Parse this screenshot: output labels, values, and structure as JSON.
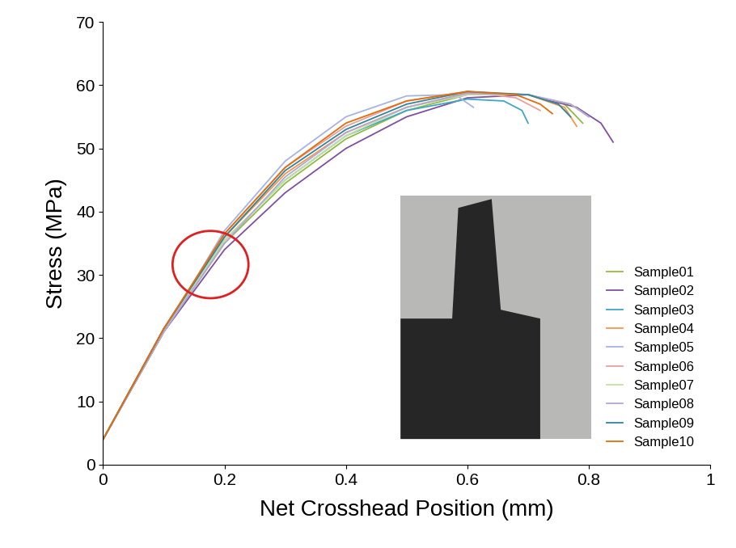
{
  "chart_data": {
    "type": "line",
    "x_label": "Net Crosshead Position (mm)",
    "y_label": "Stress (MPa)",
    "xlim": [
      0,
      1
    ],
    "xticks": [
      0,
      0.2,
      0.4,
      0.6,
      0.8,
      1
    ],
    "ylim": [
      0,
      70
    ],
    "yticks": [
      0,
      10,
      20,
      30,
      40,
      50,
      60,
      70
    ],
    "grid": false,
    "legend": "lower right",
    "series": [
      {
        "name": "Sample01",
        "color": "#8fbc3f",
        "line_style": "solid",
        "x": [
          0,
          0.1,
          0.2,
          0.3,
          0.4,
          0.5,
          0.6,
          0.7,
          0.76,
          0.79
        ],
        "values": [
          4,
          21,
          35,
          44.5,
          51.5,
          56,
          58.5,
          58.5,
          57,
          54
        ]
      },
      {
        "name": "Sample02",
        "color": "#7f4fa0",
        "line_style": "solid",
        "x": [
          0,
          0.1,
          0.2,
          0.3,
          0.4,
          0.5,
          0.6,
          0.7,
          0.78,
          0.82,
          0.84
        ],
        "values": [
          4,
          21,
          34,
          43,
          50,
          55,
          58,
          58.5,
          56.5,
          54,
          51
        ]
      },
      {
        "name": "Sample03",
        "color": "#3fa7c6",
        "line_style": "solid",
        "x": [
          0,
          0.1,
          0.2,
          0.3,
          0.4,
          0.5,
          0.6,
          0.66,
          0.69,
          0.7
        ],
        "values": [
          4,
          21,
          35.5,
          45,
          52,
          56,
          57.8,
          57.5,
          56,
          54
        ]
      },
      {
        "name": "Sample04",
        "color": "#f79646",
        "line_style": "solid",
        "x": [
          0,
          0.1,
          0.2,
          0.3,
          0.4,
          0.5,
          0.6,
          0.7,
          0.76,
          0.78
        ],
        "values": [
          4,
          21.5,
          36,
          46,
          52.5,
          56.5,
          58.8,
          58.5,
          56.5,
          53.5
        ]
      },
      {
        "name": "Sample05",
        "color": "#a5b4e0",
        "line_style": "solid",
        "x": [
          0,
          0.1,
          0.2,
          0.3,
          0.4,
          0.5,
          0.58,
          0.61
        ],
        "values": [
          4,
          21,
          37,
          48,
          55,
          58.3,
          58.5,
          56.5
        ]
      },
      {
        "name": "Sample06",
        "color": "#e8a0a0",
        "line_style": "solid",
        "x": [
          0,
          0.1,
          0.2,
          0.3,
          0.4,
          0.5,
          0.6,
          0.68,
          0.72
        ],
        "values": [
          4,
          21.5,
          36.5,
          47,
          53.5,
          57.5,
          59,
          58,
          56
        ]
      },
      {
        "name": "Sample07",
        "color": "#c5e0a0",
        "line_style": "solid",
        "x": [
          0,
          0.1,
          0.2,
          0.3,
          0.4,
          0.5,
          0.6,
          0.7,
          0.77,
          0.8
        ],
        "values": [
          4,
          21,
          35.5,
          45,
          52,
          56.5,
          58.5,
          58.5,
          57,
          55
        ]
      },
      {
        "name": "Sample08",
        "color": "#b4a7d6",
        "line_style": "solid",
        "x": [
          0,
          0.1,
          0.2,
          0.3,
          0.4,
          0.5,
          0.6,
          0.7,
          0.77,
          0.8
        ],
        "values": [
          4,
          21,
          35,
          45.5,
          52.5,
          56.5,
          58.7,
          58.5,
          57,
          55
        ]
      },
      {
        "name": "Sample09",
        "color": "#31859c",
        "line_style": "solid",
        "x": [
          0,
          0.1,
          0.2,
          0.3,
          0.4,
          0.5,
          0.6,
          0.7,
          0.75,
          0.77
        ],
        "values": [
          4,
          21.5,
          36,
          46.5,
          53,
          57,
          59,
          58.5,
          57,
          55
        ]
      },
      {
        "name": "Sample10",
        "color": "#e46c0a",
        "line_style": "solid",
        "x": [
          0,
          0.1,
          0.2,
          0.3,
          0.4,
          0.5,
          0.6,
          0.68,
          0.72,
          0.74
        ],
        "values": [
          4,
          21.5,
          36.5,
          47,
          54,
          57.5,
          59,
          58.5,
          57,
          55.5
        ]
      }
    ]
  }
}
